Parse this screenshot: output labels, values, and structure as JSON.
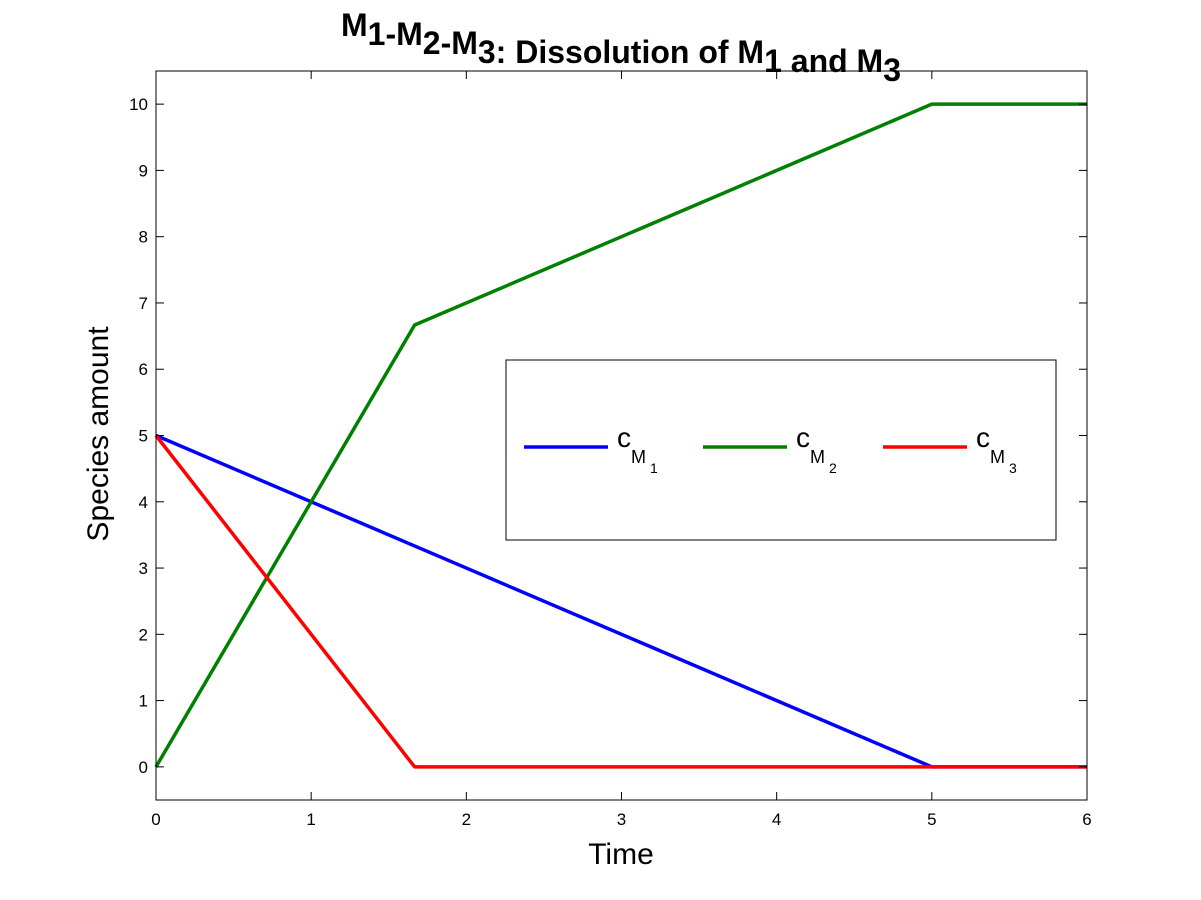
{
  "chart_data": {
    "type": "line",
    "title": {
      "segments": [
        {
          "text": "M",
          "sub": "1"
        },
        {
          "text": "-M",
          "sub": "2"
        },
        {
          "text": "-M",
          "sub": "3"
        },
        {
          "text": ": Dissolution of M",
          "sub": "1"
        },
        {
          "text": " and M",
          "sub": "3"
        }
      ]
    },
    "xlabel": "Time",
    "ylabel": "Species amount",
    "xlim": [
      0,
      6
    ],
    "ylim": [
      -0.5,
      10.5
    ],
    "xticks": [
      "0",
      "1",
      "2",
      "3",
      "4",
      "5",
      "6"
    ],
    "yticks": [
      "0",
      "1",
      "2",
      "3",
      "4",
      "5",
      "6",
      "7",
      "8",
      "9",
      "10"
    ],
    "grid": false,
    "legend_position": "center-right",
    "series": [
      {
        "name": "c_M1",
        "legend": {
          "main": "c",
          "sub": "M",
          "subsub": "1"
        },
        "color": "#0000ff",
        "x": [
          0,
          5,
          6
        ],
        "y": [
          5,
          0,
          0
        ]
      },
      {
        "name": "c_M2",
        "legend": {
          "main": "c",
          "sub": "M",
          "subsub": "2"
        },
        "color": "#008000",
        "x": [
          0,
          1.6667,
          5,
          6
        ],
        "y": [
          0,
          6.6667,
          10,
          10
        ]
      },
      {
        "name": "c_M3",
        "legend": {
          "main": "c",
          "sub": "M",
          "subsub": "3"
        },
        "color": "#ff0000",
        "x": [
          0,
          1.6667,
          6
        ],
        "y": [
          5,
          0,
          0
        ]
      }
    ]
  }
}
